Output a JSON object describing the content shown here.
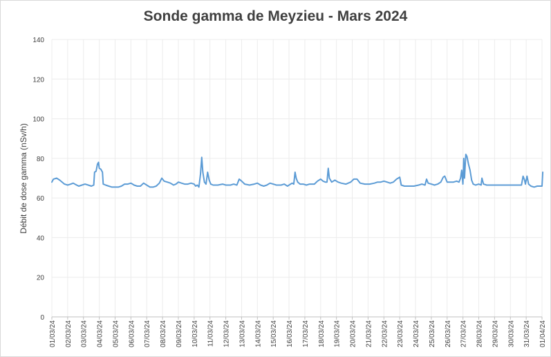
{
  "chart_data": {
    "type": "line",
    "title": "Sonde gamma de Meyzieu - Mars 2024",
    "xlabel": "",
    "ylabel": "Débit de dose gamma (nSv/h)",
    "ylim": [
      0,
      140
    ],
    "yticks": [
      0,
      20,
      40,
      60,
      80,
      100,
      120,
      140
    ],
    "x_dates": [
      "01/03/24",
      "02/03/24",
      "03/03/24",
      "04/03/24",
      "05/03/24",
      "06/03/24",
      "07/03/24",
      "08/03/24",
      "09/03/24",
      "10/03/24",
      "11/03/24",
      "12/03/24",
      "13/03/24",
      "14/03/24",
      "15/03/24",
      "16/03/24",
      "17/03/24",
      "18/03/24",
      "19/03/24",
      "20/03/24",
      "21/03/24",
      "22/03/24",
      "23/03/24",
      "24/03/24",
      "25/03/24",
      "26/03/24",
      "27/03/24",
      "28/03/24",
      "29/03/24",
      "30/03/24",
      "31/03/24",
      "01/04/24"
    ],
    "grid": "vertical and horizontal",
    "legend": "none",
    "line_color": "#5b9bd5",
    "series": [
      {
        "name": "",
        "points": [
          [
            0,
            68
          ],
          [
            0.1,
            69.5
          ],
          [
            0.3,
            70
          ],
          [
            0.5,
            69
          ],
          [
            0.8,
            67
          ],
          [
            1.0,
            66.5
          ],
          [
            1.2,
            67
          ],
          [
            1.35,
            67.5
          ],
          [
            1.5,
            66.8
          ],
          [
            1.7,
            66
          ],
          [
            1.9,
            66.5
          ],
          [
            2.1,
            67
          ],
          [
            2.3,
            66.5
          ],
          [
            2.5,
            66
          ],
          [
            2.65,
            66.5
          ],
          [
            2.7,
            73
          ],
          [
            2.8,
            73.5
          ],
          [
            2.88,
            77
          ],
          [
            2.95,
            78
          ],
          [
            3.0,
            75
          ],
          [
            3.1,
            74.5
          ],
          [
            3.2,
            73
          ],
          [
            3.25,
            67
          ],
          [
            3.4,
            66.5
          ],
          [
            3.6,
            66
          ],
          [
            3.8,
            65.5
          ],
          [
            4.0,
            65.5
          ],
          [
            4.2,
            65.5
          ],
          [
            4.4,
            66
          ],
          [
            4.6,
            67
          ],
          [
            4.8,
            67
          ],
          [
            5.0,
            67.5
          ],
          [
            5.2,
            66.5
          ],
          [
            5.4,
            66
          ],
          [
            5.6,
            66
          ],
          [
            5.8,
            67.5
          ],
          [
            6.0,
            66.5
          ],
          [
            6.2,
            65.5
          ],
          [
            6.4,
            65.5
          ],
          [
            6.6,
            66
          ],
          [
            6.8,
            67.5
          ],
          [
            6.95,
            70
          ],
          [
            7.1,
            68.5
          ],
          [
            7.3,
            68
          ],
          [
            7.5,
            67.5
          ],
          [
            7.7,
            66.5
          ],
          [
            7.85,
            67
          ],
          [
            8.0,
            68
          ],
          [
            8.2,
            67.5
          ],
          [
            8.4,
            67
          ],
          [
            8.6,
            67
          ],
          [
            8.8,
            67.5
          ],
          [
            9.0,
            67
          ],
          [
            9.1,
            66
          ],
          [
            9.2,
            66.5
          ],
          [
            9.3,
            65.5
          ],
          [
            9.4,
            72
          ],
          [
            9.48,
            80.5
          ],
          [
            9.55,
            73
          ],
          [
            9.65,
            68
          ],
          [
            9.75,
            67
          ],
          [
            9.85,
            73
          ],
          [
            9.95,
            69
          ],
          [
            10.05,
            67
          ],
          [
            10.2,
            66.5
          ],
          [
            10.5,
            66.5
          ],
          [
            10.8,
            67
          ],
          [
            11.0,
            66.5
          ],
          [
            11.3,
            66.5
          ],
          [
            11.5,
            67
          ],
          [
            11.7,
            66.5
          ],
          [
            11.85,
            69.5
          ],
          [
            12.0,
            68.5
          ],
          [
            12.2,
            67
          ],
          [
            12.5,
            66.5
          ],
          [
            12.8,
            67
          ],
          [
            13.0,
            67.5
          ],
          [
            13.2,
            66.5
          ],
          [
            13.4,
            66
          ],
          [
            13.6,
            66.5
          ],
          [
            13.8,
            67.5
          ],
          [
            14.0,
            67
          ],
          [
            14.2,
            66.5
          ],
          [
            14.5,
            66.5
          ],
          [
            14.7,
            67
          ],
          [
            14.9,
            66
          ],
          [
            15.0,
            66.5
          ],
          [
            15.2,
            67.5
          ],
          [
            15.3,
            67
          ],
          [
            15.38,
            73
          ],
          [
            15.45,
            70
          ],
          [
            15.55,
            68
          ],
          [
            15.7,
            67
          ],
          [
            15.9,
            67
          ],
          [
            16.1,
            66.5
          ],
          [
            16.3,
            67
          ],
          [
            16.6,
            67
          ],
          [
            16.8,
            68.5
          ],
          [
            17.0,
            69.5
          ],
          [
            17.15,
            68.5
          ],
          [
            17.3,
            68
          ],
          [
            17.4,
            68
          ],
          [
            17.48,
            75
          ],
          [
            17.55,
            70
          ],
          [
            17.7,
            68
          ],
          [
            17.9,
            69
          ],
          [
            18.1,
            68
          ],
          [
            18.3,
            67.5
          ],
          [
            18.6,
            67
          ],
          [
            18.9,
            68
          ],
          [
            19.1,
            69.5
          ],
          [
            19.3,
            69.5
          ],
          [
            19.5,
            67.5
          ],
          [
            19.8,
            67
          ],
          [
            20.1,
            67
          ],
          [
            20.4,
            67.5
          ],
          [
            20.6,
            68
          ],
          [
            20.8,
            68
          ],
          [
            21.0,
            68.5
          ],
          [
            21.2,
            68
          ],
          [
            21.4,
            67.5
          ],
          [
            21.6,
            68
          ],
          [
            21.8,
            69.5
          ],
          [
            22.0,
            70.5
          ],
          [
            22.1,
            66.5
          ],
          [
            22.3,
            66
          ],
          [
            22.6,
            66
          ],
          [
            22.9,
            66
          ],
          [
            23.2,
            66.5
          ],
          [
            23.4,
            67
          ],
          [
            23.6,
            66.5
          ],
          [
            23.7,
            69.5
          ],
          [
            23.8,
            67.5
          ],
          [
            24.0,
            67
          ],
          [
            24.2,
            66.5
          ],
          [
            24.4,
            67
          ],
          [
            24.6,
            68
          ],
          [
            24.75,
            70.5
          ],
          [
            24.85,
            71
          ],
          [
            24.95,
            69
          ],
          [
            25.0,
            68
          ],
          [
            25.2,
            68
          ],
          [
            25.4,
            68
          ],
          [
            25.6,
            68.5
          ],
          [
            25.75,
            68
          ],
          [
            25.85,
            70
          ],
          [
            25.92,
            74
          ],
          [
            26.0,
            67
          ],
          [
            26.05,
            80
          ],
          [
            26.1,
            70
          ],
          [
            26.18,
            82
          ],
          [
            26.25,
            81
          ],
          [
            26.35,
            77
          ],
          [
            26.45,
            74
          ],
          [
            26.55,
            69
          ],
          [
            26.65,
            67
          ],
          [
            26.8,
            66.5
          ],
          [
            27.0,
            67
          ],
          [
            27.15,
            66.5
          ],
          [
            27.2,
            70
          ],
          [
            27.3,
            67
          ],
          [
            27.5,
            66.5
          ],
          [
            28.0,
            66.5
          ],
          [
            28.5,
            66.5
          ],
          [
            29.0,
            66.5
          ],
          [
            29.5,
            66.5
          ],
          [
            29.7,
            66.5
          ],
          [
            29.8,
            71
          ],
          [
            29.9,
            69
          ],
          [
            29.95,
            67
          ],
          [
            30.05,
            71
          ],
          [
            30.15,
            67
          ],
          [
            30.3,
            66
          ],
          [
            30.5,
            65.5
          ],
          [
            30.7,
            66
          ],
          [
            30.9,
            66
          ],
          [
            31.0,
            66
          ],
          [
            31.05,
            73
          ]
        ]
      }
    ]
  }
}
